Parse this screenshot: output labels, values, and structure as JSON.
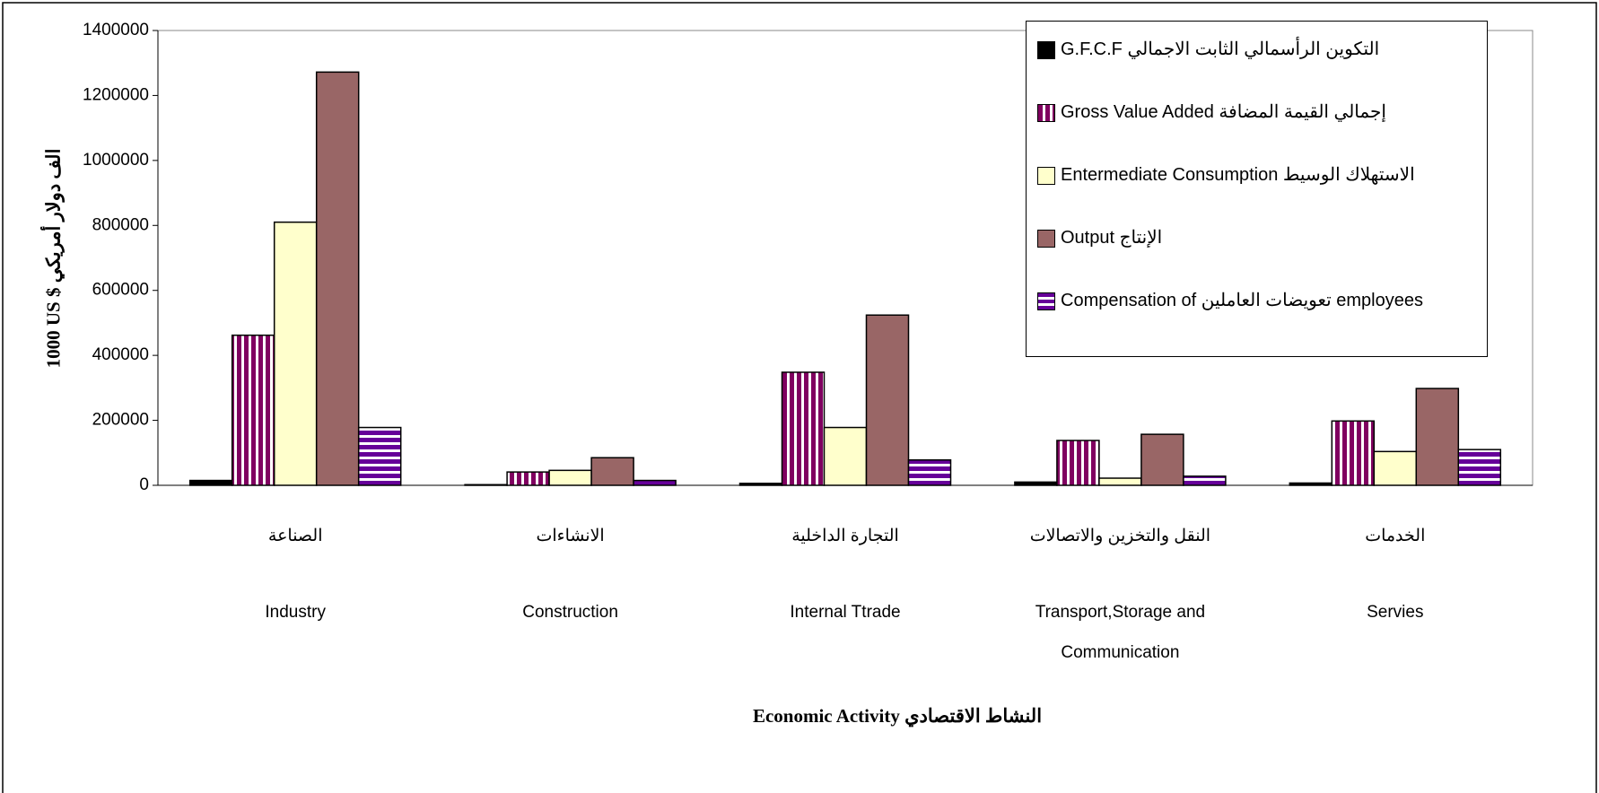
{
  "chart_data": {
    "type": "bar",
    "categories": [
      "Industry",
      "Construction",
      "Internal Ttrade",
      "Transport,Storage and Communication",
      "Servies"
    ],
    "categories_ar": [
      "الصناعة",
      "الانشاءات",
      "التجارة الداخلية",
      "النقل والتخزين والاتصالات",
      "الخدمات"
    ],
    "ylabel": "1000 US $ الف دولار أمريكي",
    "xlabel": "Economic Activity النشاط الاقتصادي",
    "ylim": [
      0,
      1400000
    ],
    "yticks": [
      0,
      200000,
      400000,
      600000,
      800000,
      1000000,
      1200000,
      1400000
    ],
    "legend": "top-right",
    "series": [
      {
        "name": "G.F.C.F التكوين الرأسمالي الثابت الاجمالي",
        "color": "#000000",
        "pattern": "solid",
        "values": [
          15000,
          2000,
          6000,
          10000,
          7000
        ]
      },
      {
        "name": "Gross Value Added إجمالي القيمة المضافة",
        "color": "#800060",
        "pattern": "vertical-stripes",
        "values": [
          462000,
          41000,
          348000,
          138000,
          198000
        ]
      },
      {
        "name": "Entermediate Consumption الاستهلاك الوسيط",
        "color": "#ffffcc",
        "pattern": "solid",
        "values": [
          810000,
          46000,
          178000,
          22000,
          104000
        ]
      },
      {
        "name": "Output الإنتاج",
        "color": "#996666",
        "pattern": "solid",
        "values": [
          1272000,
          85000,
          524000,
          157000,
          298000
        ]
      },
      {
        "name": "Compensation of تعويضات العاملين employees",
        "color": "#660099",
        "pattern": "horizontal-stripes",
        "values": [
          178000,
          15000,
          78000,
          28000,
          110000
        ]
      }
    ]
  }
}
